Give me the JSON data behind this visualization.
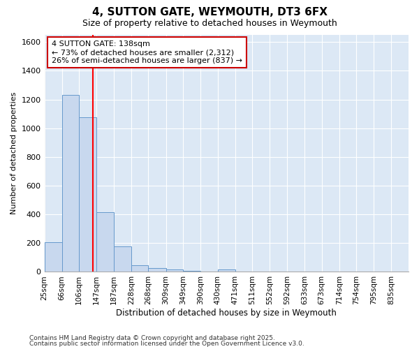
{
  "title1": "4, SUTTON GATE, WEYMOUTH, DT3 6FX",
  "title2": "Size of property relative to detached houses in Weymouth",
  "xlabel": "Distribution of detached houses by size in Weymouth",
  "ylabel": "Number of detached properties",
  "bin_labels": [
    "25sqm",
    "66sqm",
    "106sqm",
    "147sqm",
    "187sqm",
    "228sqm",
    "268sqm",
    "309sqm",
    "349sqm",
    "390sqm",
    "430sqm",
    "471sqm",
    "511sqm",
    "552sqm",
    "592sqm",
    "633sqm",
    "673sqm",
    "714sqm",
    "754sqm",
    "795sqm",
    "835sqm"
  ],
  "bin_edges": [
    25,
    66,
    106,
    147,
    187,
    228,
    268,
    309,
    349,
    390,
    430,
    471,
    511,
    552,
    592,
    633,
    673,
    714,
    754,
    795,
    835,
    876
  ],
  "bar_heights": [
    205,
    1230,
    1075,
    415,
    175,
    45,
    25,
    15,
    5,
    0,
    15,
    0,
    0,
    0,
    0,
    0,
    0,
    0,
    0,
    0,
    0
  ],
  "bar_color": "#c8d8ee",
  "bar_edge_color": "#6699cc",
  "red_line_x": 138,
  "annotation_line1": "4 SUTTON GATE: 138sqm",
  "annotation_line2": "← 73% of detached houses are smaller (2,312)",
  "annotation_line3": "26% of semi-detached houses are larger (837) →",
  "box_edge_color": "#cc0000",
  "ylim": [
    0,
    1650
  ],
  "yticks": [
    0,
    200,
    400,
    600,
    800,
    1000,
    1200,
    1400,
    1600
  ],
  "plot_bg_color": "#dce8f5",
  "fig_bg_color": "#ffffff",
  "grid_color": "#ffffff",
  "footnote1": "Contains HM Land Registry data © Crown copyright and database right 2025.",
  "footnote2": "Contains public sector information licensed under the Open Government Licence v3.0."
}
